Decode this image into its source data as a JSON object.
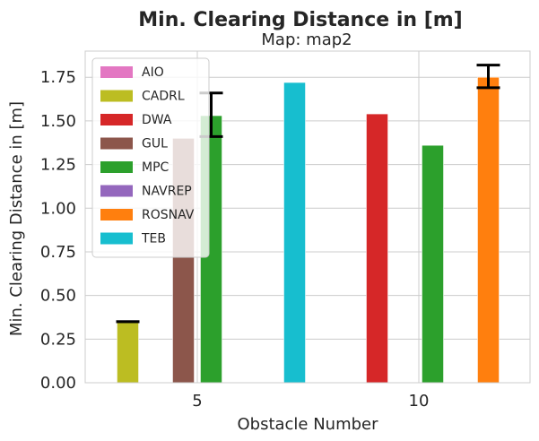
{
  "chart_data": {
    "type": "bar",
    "title": "Min. Clearing Distance in [m]",
    "subtitle": "Map: map2",
    "xlabel": "Obstacle Number",
    "ylabel": "Min. Clearing Distance in [m]",
    "categories": [
      "5",
      "10"
    ],
    "ylim": [
      0,
      1.9
    ],
    "yticks": [
      0.0,
      0.25,
      0.5,
      0.75,
      1.0,
      1.25,
      1.5,
      1.75
    ],
    "ytick_labels": [
      "0.00",
      "0.25",
      "0.50",
      "0.75",
      "1.00",
      "1.25",
      "1.50",
      "1.75"
    ],
    "grid": true,
    "legend_position": "top-left",
    "series": [
      {
        "name": "AIO",
        "color": "#e377c2",
        "values": [
          null,
          null
        ],
        "err_low": [
          null,
          null
        ],
        "err_high": [
          null,
          null
        ]
      },
      {
        "name": "CADRL",
        "color": "#bcbd22",
        "values": [
          0.35,
          null
        ],
        "err_low": [
          0.35,
          null
        ],
        "err_high": [
          0.35,
          null
        ]
      },
      {
        "name": "DWA",
        "color": "#d62728",
        "values": [
          null,
          1.54
        ],
        "err_low": [
          null,
          null
        ],
        "err_high": [
          null,
          null
        ]
      },
      {
        "name": "GUL",
        "color": "#8c564b",
        "values": [
          1.4,
          null
        ],
        "err_low": [
          null,
          null
        ],
        "err_high": [
          null,
          null
        ]
      },
      {
        "name": "MPC",
        "color": "#2ca02c",
        "values": [
          1.53,
          1.36
        ],
        "err_low": [
          1.41,
          null
        ],
        "err_high": [
          1.66,
          null
        ]
      },
      {
        "name": "NAVREP",
        "color": "#9467bd",
        "values": [
          null,
          null
        ],
        "err_low": [
          null,
          null
        ],
        "err_high": [
          null,
          null
        ]
      },
      {
        "name": "ROSNAV",
        "color": "#ff7f0e",
        "values": [
          null,
          1.75
        ],
        "err_low": [
          null,
          1.69
        ],
        "err_high": [
          null,
          1.82
        ]
      },
      {
        "name": "TEB",
        "color": "#17becf",
        "values": [
          1.72,
          null
        ],
        "err_low": [
          null,
          null
        ],
        "err_high": [
          null,
          null
        ]
      }
    ]
  }
}
